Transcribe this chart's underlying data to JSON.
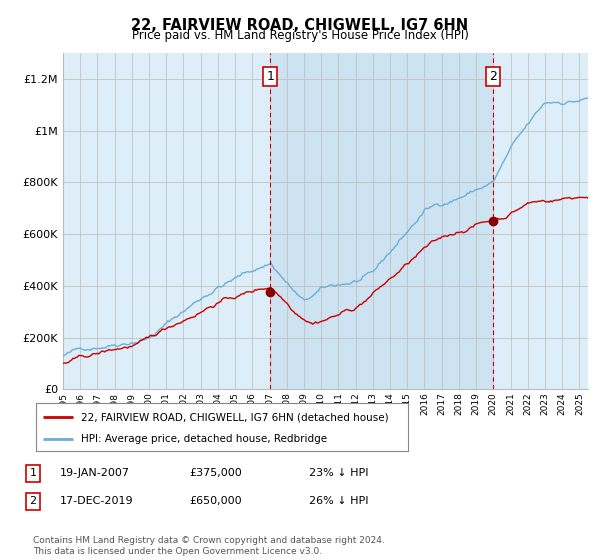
{
  "title": "22, FAIRVIEW ROAD, CHIGWELL, IG7 6HN",
  "subtitle": "Price paid vs. HM Land Registry's House Price Index (HPI)",
  "legend_line1": "22, FAIRVIEW ROAD, CHIGWELL, IG7 6HN (detached house)",
  "legend_line2": "HPI: Average price, detached house, Redbridge",
  "note1_label": "1",
  "note1_date": "19-JAN-2007",
  "note1_price": "£375,000",
  "note1_hpi": "23% ↓ HPI",
  "note2_label": "2",
  "note2_date": "17-DEC-2019",
  "note2_price": "£650,000",
  "note2_hpi": "26% ↓ HPI",
  "footnote": "Contains HM Land Registry data © Crown copyright and database right 2024.\nThis data is licensed under the Open Government Licence v3.0.",
  "hpi_color": "#6baed6",
  "price_color": "#cc0000",
  "marker_color": "#8b0000",
  "vline_color": "#cc0000",
  "bg_color": "#ddeef8",
  "shade_color": "#c8dff0",
  "grid_color": "#bbbbbb",
  "ylim": [
    0,
    1300000
  ],
  "yticks": [
    0,
    200000,
    400000,
    600000,
    800000,
    1000000,
    1200000
  ],
  "ytick_labels": [
    "£0",
    "£200K",
    "£400K",
    "£600K",
    "£800K",
    "£1M",
    "£1.2M"
  ],
  "x_start_year": 1995,
  "x_end_year": 2025.5,
  "sale1_year": 2007.05,
  "sale1_price": 375000,
  "sale2_year": 2019.96,
  "sale2_price": 650000
}
